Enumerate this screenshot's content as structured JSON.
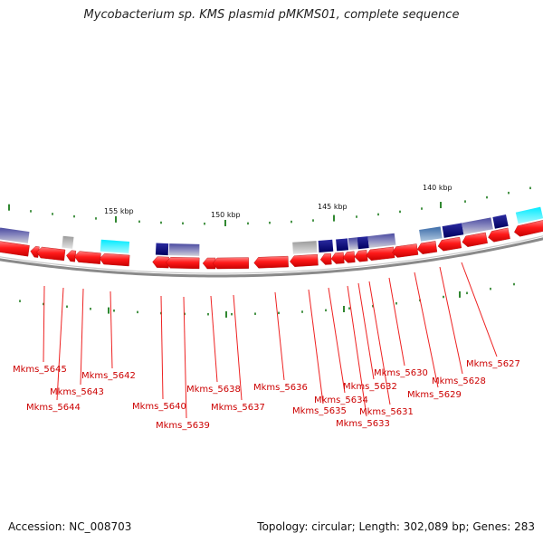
{
  "title": "Mycobacterium sp. KMS plasmid pMKMS01, complete sequence",
  "footer": {
    "accession": "Accession: NC_008703",
    "summary": "Topology: circular; Length: 302,089 bp; Genes: 283"
  },
  "scale_labels": [
    {
      "text": "155 kbp"
    },
    {
      "text": "150 kbp"
    },
    {
      "text": "145 kbp"
    },
    {
      "text": "140 kbp"
    }
  ],
  "gene_labels": [
    {
      "text": "Mkms_5645"
    },
    {
      "text": "Mkms_5644"
    },
    {
      "text": "Mkms_5643"
    },
    {
      "text": "Mkms_5642"
    },
    {
      "text": "Mkms_5640"
    },
    {
      "text": "Mkms_5639"
    },
    {
      "text": "Mkms_5638"
    },
    {
      "text": "Mkms_5637"
    },
    {
      "text": "Mkms_5636"
    },
    {
      "text": "Mkms_5635"
    },
    {
      "text": "Mkms_5634"
    },
    {
      "text": "Mkms_5633"
    },
    {
      "text": "Mkms_5632"
    },
    {
      "text": "Mkms_5631"
    },
    {
      "text": "Mkms_5630"
    },
    {
      "text": "Mkms_5629"
    },
    {
      "text": "Mkms_5628"
    },
    {
      "text": "Mkms_5627"
    }
  ],
  "colors": {
    "gene_feature": "#ee1111",
    "gene_label": "#cc0000",
    "backbone": "#8a8a8a",
    "scale_tick": "#1a7a1a",
    "dark_blue_feature": "#0a0a80",
    "slate_feature": "#7070a8",
    "cyan_feature": "#22e5f0",
    "grey_feature": "#b8b8b8"
  }
}
